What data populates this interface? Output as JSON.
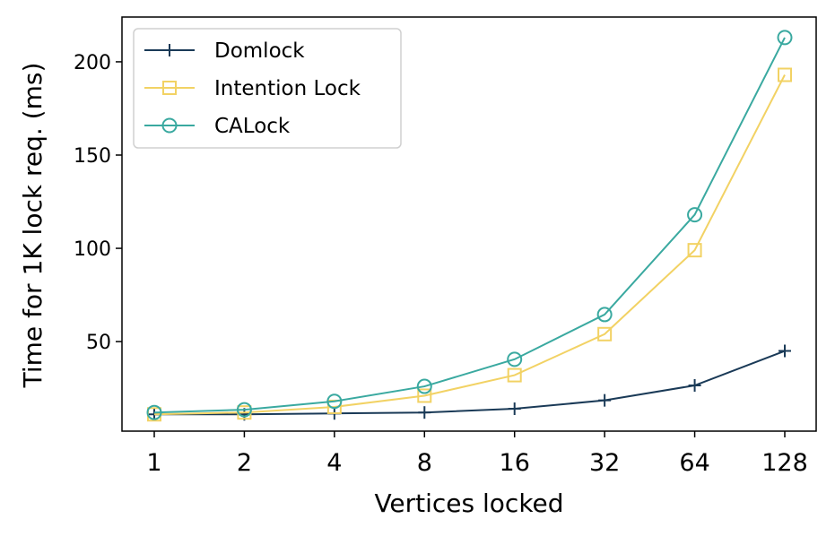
{
  "chart_data": {
    "type": "line",
    "title": "",
    "xlabel": "Vertices locked",
    "ylabel": "Time for 1K lock req. (ms)",
    "x": [
      "1",
      "2",
      "4",
      "8",
      "16",
      "32",
      "64",
      "128"
    ],
    "yticks": [
      "50",
      "100",
      "150",
      "200"
    ],
    "ylim": [
      2,
      224
    ],
    "grid": false,
    "legend_position": "upper-left",
    "series": [
      {
        "name": "Domlock",
        "values": [
          11,
          11,
          11.5,
          12,
          14,
          18.5,
          26.5,
          45
        ],
        "color": "#1a3a57",
        "marker": "plus"
      },
      {
        "name": "Intention Lock",
        "values": [
          11,
          12,
          15,
          21,
          32,
          54,
          99,
          193
        ],
        "color": "#f2d264",
        "marker": "square"
      },
      {
        "name": "CALock",
        "values": [
          12,
          13.5,
          18,
          26,
          40.5,
          64.5,
          118,
          213
        ],
        "color": "#3aa9a0",
        "marker": "circle"
      }
    ]
  }
}
